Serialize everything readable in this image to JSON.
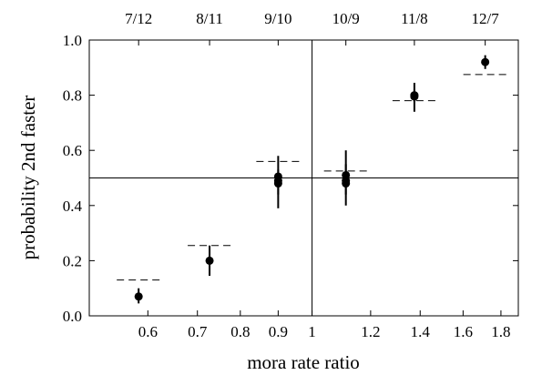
{
  "chart_data": {
    "type": "scatter",
    "title": "",
    "xlabel": "mora rate ratio",
    "ylabel": "probability 2nd faster",
    "x_scale": "log",
    "xlim": [
      0.5,
      1.9
    ],
    "ylim": [
      0.0,
      1.0
    ],
    "grid": false,
    "x_ticks": [
      {
        "value": 0.6,
        "label": "0.6"
      },
      {
        "value": 0.7,
        "label": "0.7"
      },
      {
        "value": 0.8,
        "label": "0.8"
      },
      {
        "value": 0.9,
        "label": "0.9"
      },
      {
        "value": 1.0,
        "label": "1"
      },
      {
        "value": 1.2,
        "label": "1.2"
      },
      {
        "value": 1.4,
        "label": "1.4"
      },
      {
        "value": 1.6,
        "label": "1.6"
      },
      {
        "value": 1.8,
        "label": "1.8"
      }
    ],
    "y_ticks": [
      {
        "value": 0.0,
        "label": "0.0"
      },
      {
        "value": 0.2,
        "label": "0.2"
      },
      {
        "value": 0.4,
        "label": "0.4"
      },
      {
        "value": 0.6,
        "label": "0.6"
      },
      {
        "value": 0.8,
        "label": "0.8"
      },
      {
        "value": 1.0,
        "label": "1.0"
      }
    ],
    "top_ticks": [
      {
        "value": 0.583,
        "label": "7/12"
      },
      {
        "value": 0.727,
        "label": "8/11"
      },
      {
        "value": 0.9,
        "label": "9/10"
      },
      {
        "value": 1.111,
        "label": "10/9"
      },
      {
        "value": 1.375,
        "label": "11/8"
      },
      {
        "value": 1.714,
        "label": "12/7"
      }
    ],
    "reference_lines": {
      "x": 1.0,
      "y": 0.5
    },
    "points": [
      {
        "x": 0.583,
        "y": 0.07,
        "err_low": 0.045,
        "err_high": 0.1
      },
      {
        "x": 0.727,
        "y": 0.2,
        "err_low": 0.145,
        "err_high": 0.255
      },
      {
        "x": 0.9,
        "y": 0.49,
        "err_low": 0.39,
        "err_high": 0.58
      },
      {
        "x": 0.9,
        "y": 0.48,
        "err_low": 0.44,
        "err_high": 0.52
      },
      {
        "x": 0.9,
        "y": 0.505,
        "err_low": 0.47,
        "err_high": 0.53
      },
      {
        "x": 1.111,
        "y": 0.49,
        "err_low": 0.4,
        "err_high": 0.6
      },
      {
        "x": 1.111,
        "y": 0.51,
        "err_low": 0.47,
        "err_high": 0.55
      },
      {
        "x": 1.111,
        "y": 0.48,
        "err_low": 0.44,
        "err_high": 0.52
      },
      {
        "x": 1.375,
        "y": 0.795,
        "err_low": 0.74,
        "err_high": 0.845
      },
      {
        "x": 1.375,
        "y": 0.8,
        "err_low": 0.775,
        "err_high": 0.82
      },
      {
        "x": 1.714,
        "y": 0.92,
        "err_low": 0.895,
        "err_high": 0.945
      }
    ],
    "predictions": [
      {
        "x": 0.583,
        "y": 0.13
      },
      {
        "x": 0.727,
        "y": 0.255
      },
      {
        "x": 0.9,
        "y": 0.56
      },
      {
        "x": 1.111,
        "y": 0.525
      },
      {
        "x": 1.375,
        "y": 0.78
      },
      {
        "x": 1.714,
        "y": 0.875
      }
    ]
  }
}
